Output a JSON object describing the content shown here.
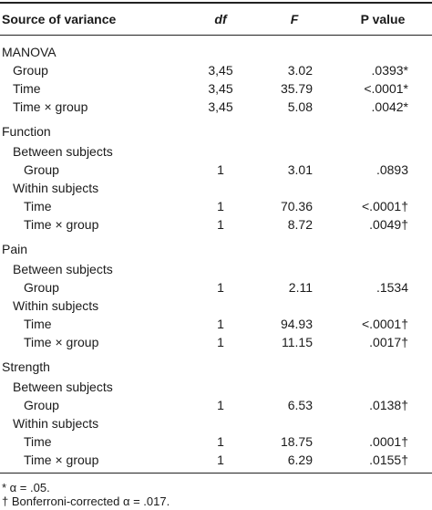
{
  "table": {
    "header": [
      "Source of variance",
      "df",
      "F",
      "P value"
    ],
    "sections": [
      {
        "title": "MANOVA",
        "rows": [
          [
            "Group",
            "3,45",
            "3.02",
            ".0393*"
          ],
          [
            "Time",
            "3,45",
            "35.79",
            "<.0001*"
          ],
          [
            "Time × group",
            "3,45",
            "5.08",
            ".0042*"
          ]
        ]
      },
      {
        "title": "Function",
        "groups": [
          {
            "title": "Between subjects",
            "rows": [
              [
                "Group",
                "1",
                "3.01",
                ".0893"
              ]
            ]
          },
          {
            "title": "Within subjects",
            "rows": [
              [
                "Time",
                "1",
                "70.36",
                "<.0001†"
              ],
              [
                "Time × group",
                "1",
                "8.72",
                ".0049†"
              ]
            ]
          }
        ]
      },
      {
        "title": "Pain",
        "groups": [
          {
            "title": "Between subjects",
            "rows": [
              [
                "Group",
                "1",
                "2.11",
                ".1534"
              ]
            ]
          },
          {
            "title": "Within subjects",
            "rows": [
              [
                "Time",
                "1",
                "94.93",
                "<.0001†"
              ],
              [
                "Time × group",
                "1",
                "11.15",
                ".0017†"
              ]
            ]
          }
        ]
      },
      {
        "title": "Strength",
        "groups": [
          {
            "title": "Between subjects",
            "rows": [
              [
                "Group",
                "1",
                "6.53",
                ".0138†"
              ]
            ]
          },
          {
            "title": "Within subjects",
            "rows": [
              [
                "Time",
                "1",
                "18.75",
                ".0001†"
              ],
              [
                "Time × group",
                "1",
                "6.29",
                ".0155†"
              ]
            ]
          }
        ]
      }
    ],
    "footnotes": [
      "* α = .05.",
      "† Bonferroni-corrected α = .017."
    ]
  }
}
